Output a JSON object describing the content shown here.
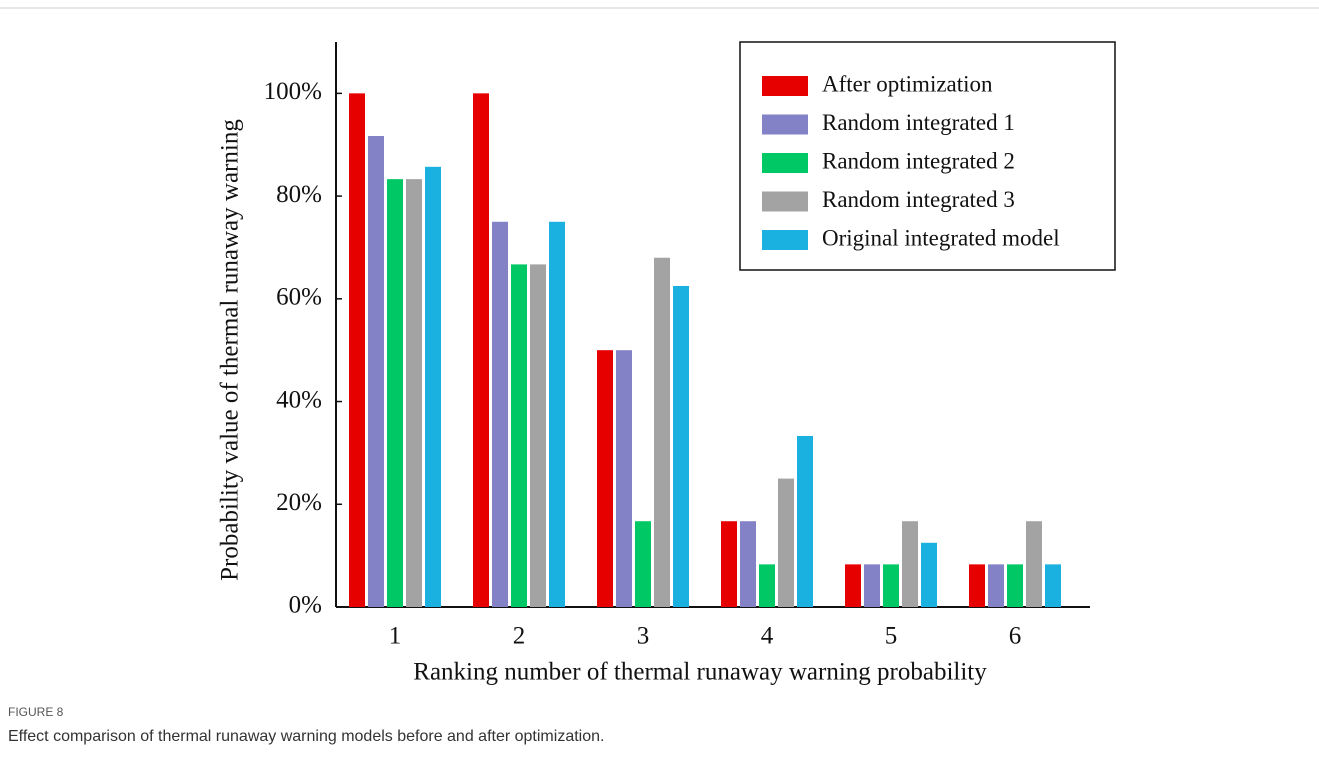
{
  "chart_data": {
    "type": "bar",
    "y_label": "Probability value of thermal runaway warning",
    "x_label": "Ranking number of thermal runaway warning probability",
    "categories": [
      "1",
      "2",
      "3",
      "4",
      "5",
      "6"
    ],
    "series": [
      {
        "name": "After optimization",
        "color": "#e60000",
        "values": [
          100,
          100,
          50,
          16.7,
          8.3,
          8.3
        ]
      },
      {
        "name": "Random integrated 1",
        "color": "#8482c6",
        "values": [
          91.7,
          75,
          50,
          16.7,
          8.3,
          8.3
        ]
      },
      {
        "name": "Random integrated 2",
        "color": "#00c864",
        "values": [
          83.3,
          66.7,
          16.7,
          8.3,
          8.3,
          8.3
        ]
      },
      {
        "name": "Random integrated 3",
        "color": "#a3a3a3",
        "values": [
          83.3,
          66.7,
          68,
          25,
          16.7,
          16.7
        ]
      },
      {
        "name": "Original integrated model",
        "color": "#1ab0df",
        "values": [
          85.7,
          75,
          62.5,
          33.3,
          12.5,
          8.3
        ]
      }
    ],
    "ylim": [
      0,
      110
    ],
    "yticks": [
      {
        "value": 0,
        "label": "0%"
      },
      {
        "value": 20,
        "label": "20%"
      },
      {
        "value": 40,
        "label": "40%"
      },
      {
        "value": 60,
        "label": "60%"
      },
      {
        "value": 80,
        "label": "80%"
      },
      {
        "value": 100,
        "label": "100%"
      }
    ],
    "legend": "top-right"
  },
  "figure": {
    "label": "FIGURE 8",
    "caption": "Effect comparison of thermal runaway warning models before and after optimization."
  }
}
